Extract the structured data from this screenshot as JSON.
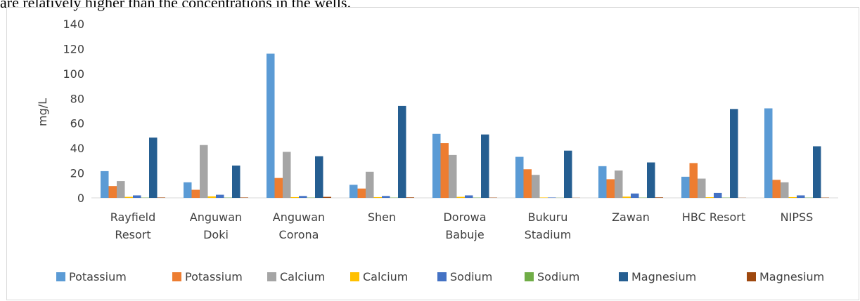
{
  "caption": "are relatively higher than the concentrations in the wells.",
  "chart_data": {
    "type": "bar",
    "title": "",
    "xlabel": "",
    "ylabel": "mg/L",
    "ylim": [
      0,
      140
    ],
    "yticks": [
      0,
      20,
      40,
      60,
      80,
      100,
      120,
      140
    ],
    "grid": false,
    "legend_position": "bottom",
    "categories": [
      [
        "Rayfield",
        "Resort"
      ],
      [
        "Anguwan",
        "Doki"
      ],
      [
        "Anguwan",
        "Corona"
      ],
      [
        "Shen"
      ],
      [
        "Dorowa",
        "Babuje"
      ],
      [
        "Bukuru",
        "Stadium"
      ],
      [
        "Zawan"
      ],
      [
        "HBC Resort"
      ],
      [
        "NIPSS"
      ]
    ],
    "series": [
      {
        "name": "Potassium",
        "color": "#5b9bd5",
        "values": [
          21.5,
          12.5,
          116,
          10.5,
          51.5,
          33,
          25.5,
          17,
          72
        ]
      },
      {
        "name": "Potassium",
        "color": "#ed7d31",
        "values": [
          9.5,
          6.5,
          16,
          7.5,
          44,
          23,
          15,
          28,
          14.5
        ]
      },
      {
        "name": "Calcium",
        "color": "#a5a5a5",
        "values": [
          13.5,
          42.5,
          37,
          21,
          34.5,
          18.5,
          22,
          15.5,
          12.5
        ]
      },
      {
        "name": "Calcium",
        "color": "#ffc000",
        "values": [
          0.8,
          1.2,
          0.6,
          0.6,
          0.8,
          0.3,
          1.0,
          0.5,
          0.6
        ]
      },
      {
        "name": "Sodium",
        "color": "#4472c4",
        "values": [
          2.0,
          2.5,
          1.5,
          1.5,
          2.0,
          0.3,
          3.5,
          4.0,
          2.0
        ]
      },
      {
        "name": "Sodium",
        "color": "#70ad47",
        "values": [
          0.2,
          0.2,
          0.2,
          0.2,
          0.2,
          0.1,
          0.2,
          0.2,
          0.2
        ]
      },
      {
        "name": "Magnesium",
        "color": "#255e91",
        "values": [
          48.5,
          26,
          33.5,
          74,
          51,
          38,
          28.5,
          71.5,
          41.5
        ]
      },
      {
        "name": "Magnesium",
        "color": "#9e480e",
        "values": [
          0.3,
          0.3,
          0.8,
          0.4,
          0.2,
          0.1,
          0.4,
          0.1,
          0.2
        ]
      }
    ]
  }
}
